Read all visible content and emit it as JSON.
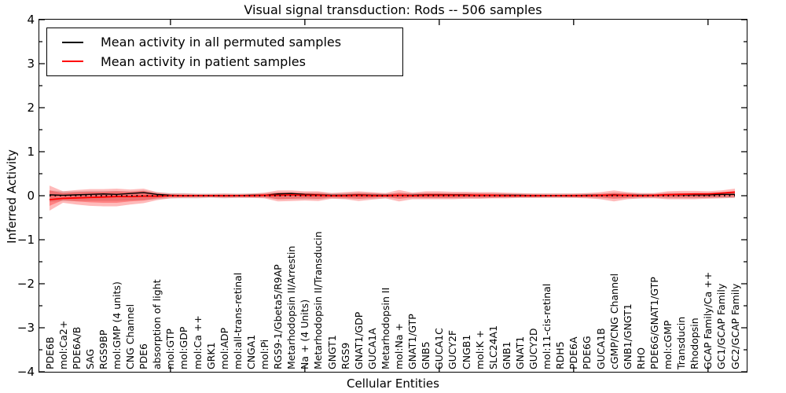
{
  "title": "Visual signal transduction: Rods -- 506 samples",
  "legend": {
    "items": [
      {
        "label": "Mean activity in all permuted samples",
        "color": "#000000"
      },
      {
        "label": "Mean activity in patient samples",
        "color": "#ff0000"
      }
    ]
  },
  "chart_data": {
    "type": "line",
    "title": "Visual signal transduction: Rods -- 506 samples",
    "xlabel": "Cellular Entities",
    "ylabel": "Inferred Activity",
    "ylim": [
      -4,
      4
    ],
    "yticks": [
      -4,
      -3,
      -2,
      -1,
      0,
      1,
      2,
      3,
      4
    ],
    "y_minor_step": 0.5,
    "x_major_tick_indices": [
      9,
      19,
      29,
      39,
      49
    ],
    "grid": false,
    "legend_position": "upper left",
    "zero_line": {
      "style": "dotted",
      "color": "#000000",
      "y": 0
    },
    "categories": [
      "PDE6B",
      "mol:Ca2+",
      "PDE6A/B",
      "SAG",
      "RGS9BP",
      "mol:GMP (4 units)",
      "CNG Channel",
      "PDE6",
      "absorption of light",
      "mol:GTP",
      "mol:GDP",
      "mol:Ca ++",
      "GRK1",
      "mol:ADP",
      "mol:all-trans-retinal",
      "CNGA1",
      "mol:Pi",
      "RGS9-1/Gbeta5/R9AP",
      "Metarhodopsin II/Arrestin",
      "Na + (4 Units)",
      "Metarhodopsin II/Transducin",
      "GNGT1",
      "RGS9",
      "GNAT1/GDP",
      "GUCA1A",
      "Metarhodopsin II",
      "mol:Na +",
      "GNAT1/GTP",
      "GNB5",
      "GUCA1C",
      "GUCY2F",
      "CNGB1",
      "mol:K +",
      "SLC24A1",
      "GNB1",
      "GNAT1",
      "GUCY2D",
      "mol:11-cis-retinal",
      "RDH5",
      "PDE6A",
      "PDE6G",
      "GUCA1B",
      "cGMP/CNG Channel",
      "GNB1/GNGT1",
      "RHO",
      "PDE6G/GNAT1/GTP",
      "mol:cGMP",
      "Transducin",
      "Rhodopsin",
      "GCAP Family/Ca ++",
      "GC1/GCAP Family",
      "GC2/GCAP Family"
    ],
    "series": [
      {
        "name": "Mean activity in all permuted samples",
        "color": "#000000",
        "line_width": 1.4,
        "values": [
          0.02,
          0.01,
          0.02,
          0.03,
          0.04,
          0.03,
          0.05,
          0.07,
          0.03,
          0.01,
          0.0,
          0.0,
          0.0,
          0.0,
          0.0,
          0.01,
          0.01,
          0.04,
          0.05,
          0.03,
          0.02,
          0.01,
          0.01,
          0.02,
          0.01,
          0.01,
          0.01,
          0.01,
          0.02,
          0.02,
          0.02,
          0.02,
          0.01,
          0.01,
          0.01,
          0.01,
          0.0,
          0.0,
          0.0,
          0.0,
          0.01,
          0.01,
          0.02,
          0.01,
          0.01,
          0.01,
          0.02,
          0.02,
          0.02,
          0.02,
          0.03,
          0.03
        ]
      },
      {
        "name": "Mean activity in patient samples",
        "color": "#ff0000",
        "line_width": 1.8,
        "values": [
          -0.09,
          -0.06,
          -0.05,
          -0.04,
          -0.03,
          -0.02,
          -0.02,
          -0.01,
          -0.01,
          0.0,
          0.0,
          0.0,
          0.0,
          0.0,
          0.0,
          0.0,
          0.01,
          0.01,
          0.02,
          0.01,
          0.01,
          0.0,
          0.0,
          0.01,
          0.0,
          0.0,
          0.01,
          0.0,
          0.01,
          0.01,
          0.01,
          0.01,
          0.01,
          0.01,
          0.0,
          0.0,
          0.0,
          0.0,
          0.0,
          0.0,
          0.0,
          0.01,
          0.01,
          0.01,
          0.0,
          0.01,
          0.02,
          0.03,
          0.04,
          0.04,
          0.06,
          0.08
        ]
      }
    ],
    "bands": [
      {
        "name": "permuted samples range",
        "color": "rgba(0,0,0,0.13)",
        "upper": [
          0.12,
          0.1,
          0.1,
          0.11,
          0.11,
          0.11,
          0.1,
          0.12,
          0.08,
          0.06,
          0.06,
          0.05,
          0.05,
          0.05,
          0.05,
          0.05,
          0.06,
          0.08,
          0.08,
          0.07,
          0.07,
          0.06,
          0.06,
          0.07,
          0.06,
          0.05,
          0.06,
          0.06,
          0.06,
          0.06,
          0.06,
          0.06,
          0.06,
          0.06,
          0.05,
          0.05,
          0.05,
          0.05,
          0.05,
          0.05,
          0.05,
          0.05,
          0.06,
          0.06,
          0.05,
          0.05,
          0.06,
          0.06,
          0.06,
          0.06,
          0.06,
          0.06
        ],
        "lower": [
          -0.14,
          -0.12,
          -0.12,
          -0.12,
          -0.12,
          -0.12,
          -0.11,
          -0.1,
          -0.08,
          -0.06,
          -0.06,
          -0.06,
          -0.05,
          -0.06,
          -0.05,
          -0.05,
          -0.05,
          -0.08,
          -0.08,
          -0.08,
          -0.08,
          -0.06,
          -0.07,
          -0.07,
          -0.07,
          -0.06,
          -0.06,
          -0.06,
          -0.06,
          -0.06,
          -0.06,
          -0.06,
          -0.06,
          -0.05,
          -0.05,
          -0.05,
          -0.05,
          -0.05,
          -0.05,
          -0.05,
          -0.05,
          -0.06,
          -0.06,
          -0.06,
          -0.06,
          -0.05,
          -0.06,
          -0.06,
          -0.06,
          -0.05,
          -0.05,
          -0.05
        ]
      },
      {
        "name": "patient samples outer range",
        "color": "rgba(255,0,0,0.27)",
        "upper": [
          0.23,
          0.1,
          0.13,
          0.15,
          0.15,
          0.16,
          0.14,
          0.16,
          0.08,
          0.05,
          0.05,
          0.04,
          0.04,
          0.05,
          0.04,
          0.05,
          0.07,
          0.12,
          0.12,
          0.1,
          0.1,
          0.06,
          0.08,
          0.1,
          0.08,
          0.06,
          0.13,
          0.07,
          0.1,
          0.1,
          0.09,
          0.09,
          0.08,
          0.08,
          0.07,
          0.06,
          0.05,
          0.05,
          0.05,
          0.05,
          0.06,
          0.08,
          0.12,
          0.08,
          0.06,
          0.06,
          0.1,
          0.11,
          0.11,
          0.1,
          0.12,
          0.16
        ],
        "lower": [
          -0.34,
          -0.16,
          -0.2,
          -0.23,
          -0.24,
          -0.24,
          -0.2,
          -0.17,
          -0.1,
          -0.06,
          -0.05,
          -0.05,
          -0.04,
          -0.05,
          -0.05,
          -0.05,
          -0.06,
          -0.13,
          -0.12,
          -0.11,
          -0.12,
          -0.07,
          -0.08,
          -0.12,
          -0.09,
          -0.06,
          -0.13,
          -0.08,
          -0.08,
          -0.08,
          -0.08,
          -0.07,
          -0.07,
          -0.06,
          -0.06,
          -0.05,
          -0.05,
          -0.05,
          -0.05,
          -0.05,
          -0.06,
          -0.08,
          -0.13,
          -0.08,
          -0.06,
          -0.06,
          -0.08,
          -0.08,
          -0.08,
          -0.07,
          -0.06,
          -0.05
        ]
      },
      {
        "name": "patient samples inner range",
        "color": "rgba(255,0,0,0.30)",
        "upper": [
          0.12,
          0.06,
          0.08,
          0.09,
          0.09,
          0.1,
          0.09,
          0.11,
          0.05,
          0.03,
          0.02,
          0.02,
          0.02,
          0.02,
          0.02,
          0.03,
          0.04,
          0.07,
          0.07,
          0.06,
          0.06,
          0.03,
          0.04,
          0.06,
          0.05,
          0.03,
          0.07,
          0.04,
          0.06,
          0.06,
          0.05,
          0.05,
          0.05,
          0.04,
          0.04,
          0.03,
          0.03,
          0.02,
          0.02,
          0.03,
          0.03,
          0.04,
          0.07,
          0.05,
          0.03,
          0.03,
          0.06,
          0.06,
          0.06,
          0.06,
          0.07,
          0.11
        ],
        "lower": [
          -0.23,
          -0.1,
          -0.13,
          -0.15,
          -0.16,
          -0.16,
          -0.13,
          -0.11,
          -0.06,
          -0.03,
          -0.03,
          -0.02,
          -0.02,
          -0.03,
          -0.02,
          -0.03,
          -0.03,
          -0.08,
          -0.07,
          -0.06,
          -0.07,
          -0.04,
          -0.05,
          -0.07,
          -0.05,
          -0.03,
          -0.07,
          -0.04,
          -0.05,
          -0.05,
          -0.05,
          -0.04,
          -0.04,
          -0.04,
          -0.03,
          -0.03,
          -0.03,
          -0.02,
          -0.02,
          -0.03,
          -0.03,
          -0.04,
          -0.07,
          -0.05,
          -0.03,
          -0.03,
          -0.04,
          -0.04,
          -0.04,
          -0.04,
          -0.03,
          -0.02
        ]
      }
    ]
  }
}
